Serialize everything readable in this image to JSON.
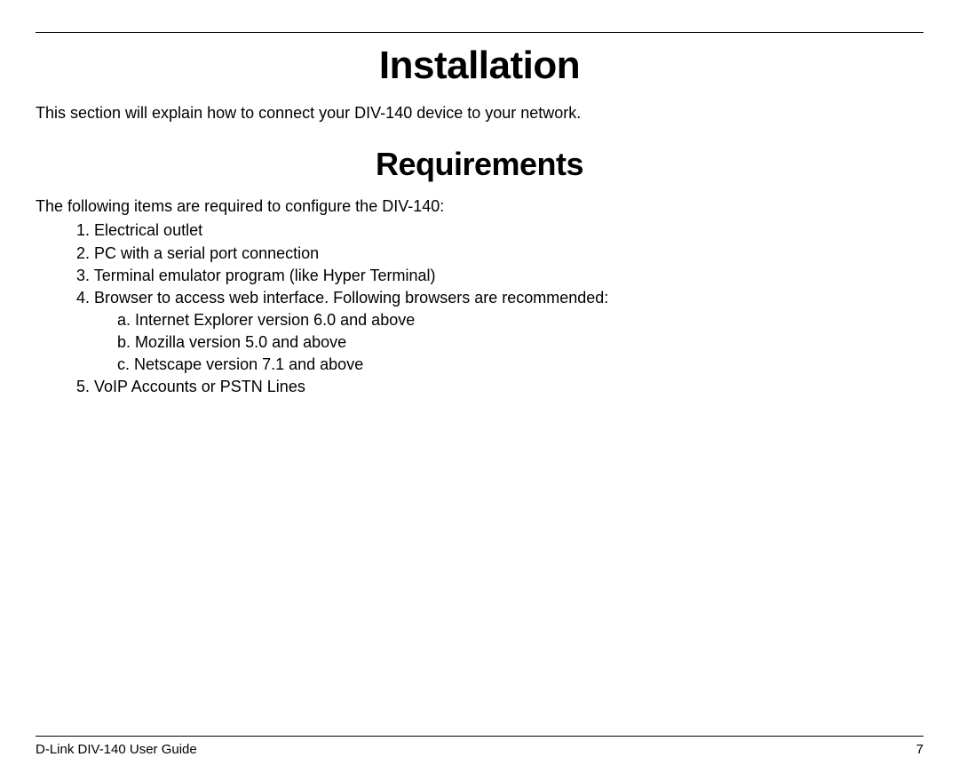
{
  "heading": "Installation",
  "intro": "This section will explain how to connect your DIV-140 device to your network.",
  "subheading": "Requirements",
  "req_intro": "The following items are required to configure the DIV-140:",
  "items": [
    {
      "num": "1.",
      "text": "Electrical outlet"
    },
    {
      "num": "2.",
      "text": "PC with a serial port connection"
    },
    {
      "num": "3.",
      "text": "Terminal emulator program (like Hyper Terminal)"
    },
    {
      "num": "4.",
      "text": "Browser to access web interface. Following browsers are recommended:"
    },
    {
      "num": "5.",
      "text": "VoIP Accounts or PSTN Lines"
    }
  ],
  "subitems": [
    {
      "letter": "a.",
      "text": "Internet Explorer version 6.0 and above"
    },
    {
      "letter": "b.",
      "text": "Mozilla version 5.0 and above"
    },
    {
      "letter": "c.",
      "text": "Netscape version 7.1 and above"
    }
  ],
  "footer": {
    "title": "D-Link DIV-140 User Guide",
    "page": "7"
  },
  "colors": {
    "text": "#000000",
    "background": "#ffffff",
    "border": "#000000"
  },
  "typography": {
    "body_font": "Arial, Helvetica, sans-serif",
    "heading_font": "Arial Narrow, Arial, sans-serif",
    "main_heading_size": 44,
    "sub_heading_size": 36,
    "body_size": 18,
    "footer_size": 15
  }
}
